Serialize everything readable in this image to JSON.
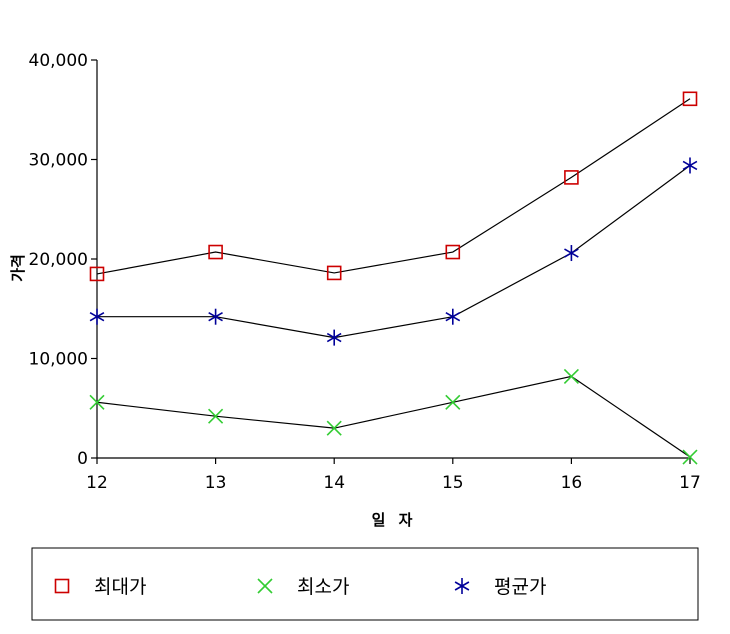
{
  "chart_data": {
    "type": "line",
    "xlabel": "일 자",
    "ylabel": "가격",
    "categories": [
      "12",
      "13",
      "14",
      "15",
      "16",
      "17"
    ],
    "ylim": [
      0,
      40000
    ],
    "y_ticks": [
      0,
      10000,
      20000,
      30000,
      40000
    ],
    "y_tick_labels": [
      "0",
      "10,000",
      "20,000",
      "30,000",
      "40,000"
    ],
    "grid": false,
    "legend_position": "bottom",
    "series": [
      {
        "name": "최대가",
        "marker": "square",
        "color": "#cc0000",
        "values": [
          18500,
          20700,
          18600,
          20700,
          28200,
          36100
        ]
      },
      {
        "name": "최소가",
        "marker": "x",
        "color": "#33cc33",
        "values": [
          5600,
          4200,
          3000,
          5600,
          8200,
          100
        ]
      },
      {
        "name": "평균가",
        "marker": "asterisk",
        "color": "#000099",
        "values": [
          14200,
          14200,
          12100,
          14200,
          20600,
          29400
        ]
      }
    ]
  }
}
